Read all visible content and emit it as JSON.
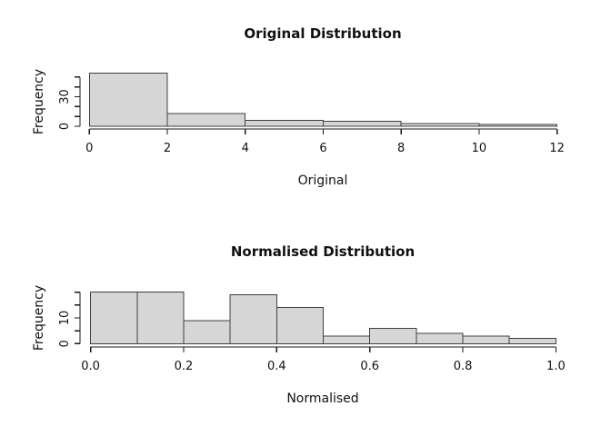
{
  "page": {
    "background": "#ffffff"
  },
  "chart_data": [
    {
      "type": "bar",
      "subtype": "histogram",
      "title": "Original Distribution",
      "xlabel": "Original",
      "ylabel": "Frequency",
      "bin_start": 0,
      "bin_width": 2,
      "counts": [
        54,
        13,
        6,
        5,
        3,
        2
      ],
      "x_ticks": [
        {
          "v": 0,
          "label": "0"
        },
        {
          "v": 2,
          "label": "2"
        },
        {
          "v": 4,
          "label": "4"
        },
        {
          "v": 6,
          "label": "6"
        },
        {
          "v": 8,
          "label": "8"
        },
        {
          "v": 10,
          "label": "10"
        },
        {
          "v": 12,
          "label": "12"
        }
      ],
      "y_ticks": [
        {
          "v": 0,
          "label": "0"
        },
        {
          "v": 10,
          "label": ""
        },
        {
          "v": 20,
          "label": ""
        },
        {
          "v": 30,
          "label": "30"
        },
        {
          "v": 40,
          "label": ""
        },
        {
          "v": 50,
          "label": ""
        }
      ],
      "xlim": [
        0,
        12
      ],
      "ylim": [
        0,
        54
      ],
      "grid": false,
      "legend": "none",
      "bar_fill": "#d6d6d6",
      "bar_stroke": "#404040",
      "axis_color": "#1a1a1a"
    },
    {
      "type": "bar",
      "subtype": "histogram",
      "title": "Normalised Distribution",
      "xlabel": "Normalised",
      "ylabel": "Frequency",
      "bin_start": 0.0,
      "bin_width": 0.1,
      "counts": [
        20,
        20,
        9,
        19,
        14,
        3,
        6,
        4,
        3,
        2
      ],
      "x_ticks": [
        {
          "v": 0.0,
          "label": "0.0"
        },
        {
          "v": 0.2,
          "label": "0.2"
        },
        {
          "v": 0.4,
          "label": "0.4"
        },
        {
          "v": 0.6,
          "label": "0.6"
        },
        {
          "v": 0.8,
          "label": "0.8"
        },
        {
          "v": 1.0,
          "label": "1.0"
        }
      ],
      "y_ticks": [
        {
          "v": 0,
          "label": "0"
        },
        {
          "v": 5,
          "label": ""
        },
        {
          "v": 10,
          "label": "10"
        },
        {
          "v": 15,
          "label": ""
        },
        {
          "v": 20,
          "label": ""
        }
      ],
      "xlim": [
        0.0,
        1.0
      ],
      "ylim": [
        0,
        20
      ],
      "grid": false,
      "legend": "none",
      "bar_fill": "#d6d6d6",
      "bar_stroke": "#404040",
      "axis_color": "#1a1a1a"
    }
  ]
}
